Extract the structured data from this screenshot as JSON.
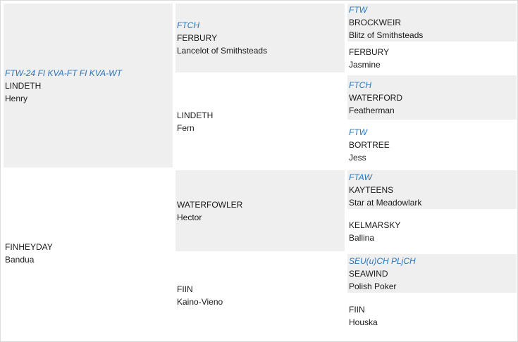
{
  "pedigree": {
    "sire": {
      "title": "FTW-24 FI KVA-FT FI KVA-WT",
      "kennel": "LINDETH",
      "name": "Henry"
    },
    "dam": {
      "title": "",
      "kennel": "FINHEYDAY",
      "name": "Bandua"
    },
    "ss": {
      "title": "FTCH",
      "kennel": "FERBURY",
      "name": "Lancelot of Smithsteads"
    },
    "sd": {
      "title": "",
      "kennel": "LINDETH",
      "name": "Fern"
    },
    "ds": {
      "title": "",
      "kennel": "WATERFOWLER",
      "name": "Hector"
    },
    "dd": {
      "title": "",
      "kennel": "FIIN",
      "name": "Kaino-Vieno"
    },
    "sss": {
      "title": "FTW",
      "kennel": "BROCKWEIR",
      "name": "Blitz of Smithsteads"
    },
    "ssd": {
      "title": "",
      "kennel": "FERBURY",
      "name": "Jasmine"
    },
    "sds": {
      "title": "FTCH",
      "kennel": "WATERFORD",
      "name": "Featherman"
    },
    "sdd": {
      "title": "FTW",
      "kennel": "BORTREE",
      "name": "Jess"
    },
    "dss": {
      "title": "FTAW",
      "kennel": "KAYTEENS",
      "name": "Star at Meadowlark"
    },
    "dsd": {
      "title": "",
      "kennel": "KELMARSKY",
      "name": "Ballina"
    },
    "dds": {
      "title": "SEU(u)CH PLjCH",
      "kennel": "SEAWIND",
      "name": "Polish Poker"
    },
    "ddd": {
      "title": "",
      "kennel": "FIIN",
      "name": "Houska"
    }
  },
  "colors": {
    "title": "#2e75b6",
    "shaded_cell": "#efefef"
  }
}
